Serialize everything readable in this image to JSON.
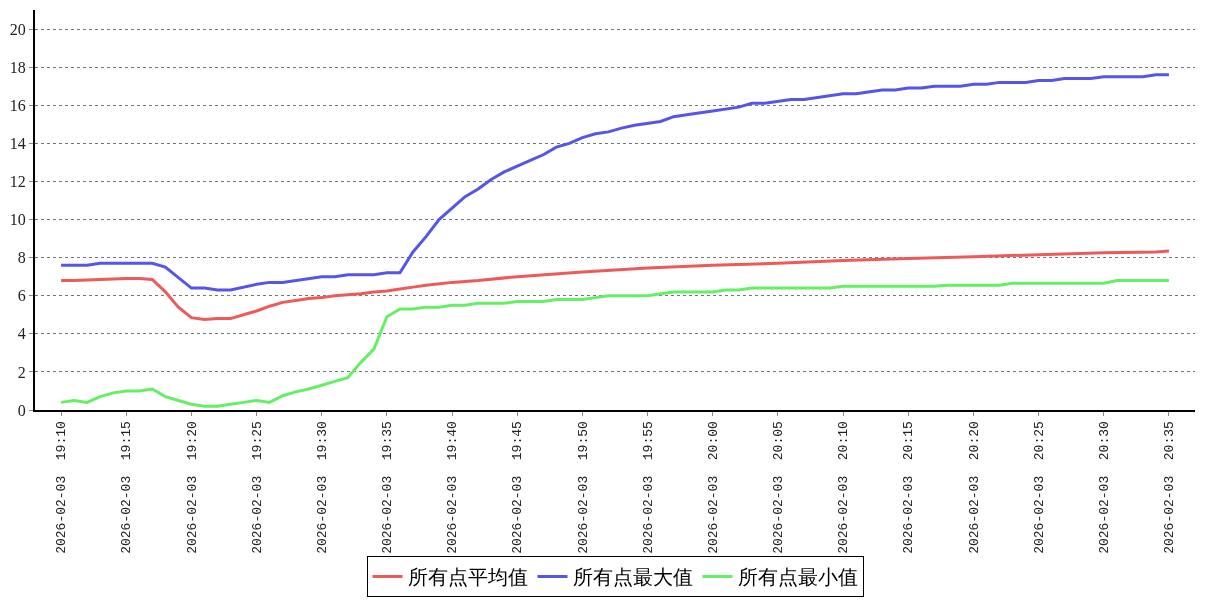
{
  "chart_data": {
    "type": "line",
    "legend": "bottom",
    "grid": "y",
    "line_style": "solid",
    "marker": "none",
    "xlim": [
      "2026-02-03T19:08",
      "2026-02-03T20:37"
    ],
    "xticks": [
      {
        "value": "2026-02-03T19:10",
        "label": "2026-02-03  19:10"
      },
      {
        "value": "2026-02-03T19:15",
        "label": "2026-02-03  19:15"
      },
      {
        "value": "2026-02-03T19:20",
        "label": "2026-02-03  19:20"
      },
      {
        "value": "2026-02-03T19:25",
        "label": "2026-02-03  19:25"
      },
      {
        "value": "2026-02-03T19:30",
        "label": "2026-02-03  19:30"
      },
      {
        "value": "2026-02-03T19:35",
        "label": "2026-02-03  19:35"
      },
      {
        "value": "2026-02-03T19:40",
        "label": "2026-02-03  19:40"
      },
      {
        "value": "2026-02-03T19:45",
        "label": "2026-02-03  19:45"
      },
      {
        "value": "2026-02-03T19:50",
        "label": "2026-02-03  19:50"
      },
      {
        "value": "2026-02-03T19:55",
        "label": "2026-02-03  19:55"
      },
      {
        "value": "2026-02-03T20:00",
        "label": "2026-02-03  20:00"
      },
      {
        "value": "2026-02-03T20:05",
        "label": "2026-02-03  20:05"
      },
      {
        "value": "2026-02-03T20:10",
        "label": "2026-02-03  20:10"
      },
      {
        "value": "2026-02-03T20:15",
        "label": "2026-02-03  20:15"
      },
      {
        "value": "2026-02-03T20:20",
        "label": "2026-02-03  20:20"
      },
      {
        "value": "2026-02-03T20:25",
        "label": "2026-02-03  20:25"
      },
      {
        "value": "2026-02-03T20:30",
        "label": "2026-02-03  20:30"
      },
      {
        "value": "2026-02-03T20:35",
        "label": "2026-02-03  20:35"
      }
    ],
    "ylim": [
      0,
      21
    ],
    "yticks": [
      0,
      2,
      4,
      6,
      8,
      10,
      12,
      14,
      16,
      18,
      20
    ],
    "series": [
      {
        "name": "所有点平均值",
        "color": "#ee5a5a",
        "x": [
          "2026-02-03T19:10",
          "2026-02-03T19:11",
          "2026-02-03T19:13",
          "2026-02-03T19:15",
          "2026-02-03T19:16",
          "2026-02-03T19:17",
          "2026-02-03T19:18",
          "2026-02-03T19:19",
          "2026-02-03T19:20",
          "2026-02-03T19:21",
          "2026-02-03T19:22",
          "2026-02-03T19:23",
          "2026-02-03T19:24",
          "2026-02-03T19:25",
          "2026-02-03T19:26",
          "2026-02-03T19:27",
          "2026-02-03T19:28",
          "2026-02-03T19:29",
          "2026-02-03T19:30",
          "2026-02-03T19:31",
          "2026-02-03T19:32",
          "2026-02-03T19:33",
          "2026-02-03T19:34",
          "2026-02-03T19:35",
          "2026-02-03T19:36",
          "2026-02-03T19:37",
          "2026-02-03T19:38",
          "2026-02-03T19:40",
          "2026-02-03T19:42",
          "2026-02-03T19:45",
          "2026-02-03T19:50",
          "2026-02-03T19:55",
          "2026-02-03T20:00",
          "2026-02-03T20:05",
          "2026-02-03T20:10",
          "2026-02-03T20:15",
          "2026-02-03T20:20",
          "2026-02-03T20:25",
          "2026-02-03T20:30",
          "2026-02-03T20:34",
          "2026-02-03T20:35"
        ],
        "values": [
          6.8,
          6.8,
          6.85,
          6.9,
          6.9,
          6.85,
          6.2,
          5.4,
          4.85,
          4.75,
          4.8,
          4.8,
          5.0,
          5.2,
          5.45,
          5.65,
          5.75,
          5.85,
          5.9,
          6.0,
          6.05,
          6.1,
          6.2,
          6.25,
          6.35,
          6.45,
          6.55,
          6.7,
          6.8,
          7.0,
          7.25,
          7.45,
          7.6,
          7.7,
          7.85,
          7.95,
          8.05,
          8.15,
          8.25,
          8.3,
          8.35
        ]
      },
      {
        "name": "所有点最大值",
        "color": "#5555e8",
        "x": [
          "2026-02-03T19:10",
          "2026-02-03T19:12",
          "2026-02-03T19:13",
          "2026-02-03T19:17",
          "2026-02-03T19:18",
          "2026-02-03T19:20",
          "2026-02-03T19:21",
          "2026-02-03T19:22",
          "2026-02-03T19:23",
          "2026-02-03T19:25",
          "2026-02-03T19:26",
          "2026-02-03T19:27",
          "2026-02-03T19:30",
          "2026-02-03T19:31",
          "2026-02-03T19:32",
          "2026-02-03T19:34",
          "2026-02-03T19:35",
          "2026-02-03T19:36",
          "2026-02-03T19:37",
          "2026-02-03T19:38",
          "2026-02-03T19:39",
          "2026-02-03T19:40",
          "2026-02-03T19:41",
          "2026-02-03T19:42",
          "2026-02-03T19:43",
          "2026-02-03T19:44",
          "2026-02-03T19:45",
          "2026-02-03T19:46",
          "2026-02-03T19:47",
          "2026-02-03T19:48",
          "2026-02-03T19:49",
          "2026-02-03T19:50",
          "2026-02-03T19:51",
          "2026-02-03T19:52",
          "2026-02-03T19:53",
          "2026-02-03T19:54",
          "2026-02-03T19:56",
          "2026-02-03T19:57",
          "2026-02-03T19:58",
          "2026-02-03T20:00",
          "2026-02-03T20:02",
          "2026-02-03T20:03",
          "2026-02-03T20:04",
          "2026-02-03T20:06",
          "2026-02-03T20:07",
          "2026-02-03T20:10",
          "2026-02-03T20:11",
          "2026-02-03T20:13",
          "2026-02-03T20:14",
          "2026-02-03T20:15",
          "2026-02-03T20:16",
          "2026-02-03T20:17",
          "2026-02-03T20:19",
          "2026-02-03T20:20",
          "2026-02-03T20:21",
          "2026-02-03T20:22",
          "2026-02-03T20:24",
          "2026-02-03T20:25",
          "2026-02-03T20:26",
          "2026-02-03T20:27",
          "2026-02-03T20:29",
          "2026-02-03T20:30",
          "2026-02-03T20:33",
          "2026-02-03T20:34",
          "2026-02-03T20:35"
        ],
        "values": [
          7.6,
          7.6,
          7.7,
          7.7,
          7.5,
          6.4,
          6.4,
          6.3,
          6.3,
          6.6,
          6.7,
          6.7,
          7.0,
          7.0,
          7.1,
          7.1,
          7.2,
          7.2,
          8.3,
          9.1,
          10.0,
          10.6,
          11.2,
          11.6,
          12.1,
          12.5,
          12.8,
          13.1,
          13.4,
          13.8,
          14.0,
          14.3,
          14.5,
          14.6,
          14.8,
          14.95,
          15.15,
          15.4,
          15.5,
          15.7,
          15.9,
          16.1,
          16.1,
          16.3,
          16.3,
          16.6,
          16.6,
          16.8,
          16.8,
          16.9,
          16.9,
          17.0,
          17.0,
          17.1,
          17.1,
          17.2,
          17.2,
          17.3,
          17.3,
          17.4,
          17.4,
          17.5,
          17.5,
          17.6,
          17.6
        ]
      },
      {
        "name": "所有点最小值",
        "color": "#66ee66",
        "x": [
          "2026-02-03T19:10",
          "2026-02-03T19:11",
          "2026-02-03T19:12",
          "2026-02-03T19:13",
          "2026-02-03T19:14",
          "2026-02-03T19:15",
          "2026-02-03T19:16",
          "2026-02-03T19:17",
          "2026-02-03T19:18",
          "2026-02-03T19:19",
          "2026-02-03T19:20",
          "2026-02-03T19:21",
          "2026-02-03T19:22",
          "2026-02-03T19:23",
          "2026-02-03T19:24",
          "2026-02-03T19:25",
          "2026-02-03T19:26",
          "2026-02-03T19:27",
          "2026-02-03T19:28",
          "2026-02-03T19:29",
          "2026-02-03T19:30",
          "2026-02-03T19:31",
          "2026-02-03T19:32",
          "2026-02-03T19:33",
          "2026-02-03T19:34",
          "2026-02-03T19:35",
          "2026-02-03T19:36",
          "2026-02-03T19:37",
          "2026-02-03T19:38",
          "2026-02-03T19:39",
          "2026-02-03T19:40",
          "2026-02-03T19:41",
          "2026-02-03T19:42",
          "2026-02-03T19:44",
          "2026-02-03T19:45",
          "2026-02-03T19:47",
          "2026-02-03T19:48",
          "2026-02-03T19:50",
          "2026-02-03T19:51",
          "2026-02-03T19:52",
          "2026-02-03T19:55",
          "2026-02-03T19:56",
          "2026-02-03T19:57",
          "2026-02-03T20:00",
          "2026-02-03T20:01",
          "2026-02-03T20:02",
          "2026-02-03T20:03",
          "2026-02-03T20:09",
          "2026-02-03T20:10",
          "2026-02-03T20:17",
          "2026-02-03T20:18",
          "2026-02-03T20:22",
          "2026-02-03T20:23",
          "2026-02-03T20:30",
          "2026-02-03T20:31",
          "2026-02-03T20:35"
        ],
        "values": [
          0.4,
          0.5,
          0.4,
          0.7,
          0.9,
          1.0,
          1.0,
          1.1,
          0.7,
          0.5,
          0.3,
          0.2,
          0.2,
          0.3,
          0.4,
          0.5,
          0.4,
          0.75,
          0.95,
          1.1,
          1.3,
          1.5,
          1.7,
          2.5,
          3.2,
          4.9,
          5.3,
          5.3,
          5.4,
          5.4,
          5.5,
          5.5,
          5.6,
          5.6,
          5.7,
          5.7,
          5.8,
          5.8,
          5.9,
          6.0,
          6.0,
          6.1,
          6.2,
          6.2,
          6.3,
          6.3,
          6.4,
          6.4,
          6.5,
          6.5,
          6.55,
          6.55,
          6.65,
          6.65,
          6.8,
          6.8
        ]
      }
    ]
  }
}
